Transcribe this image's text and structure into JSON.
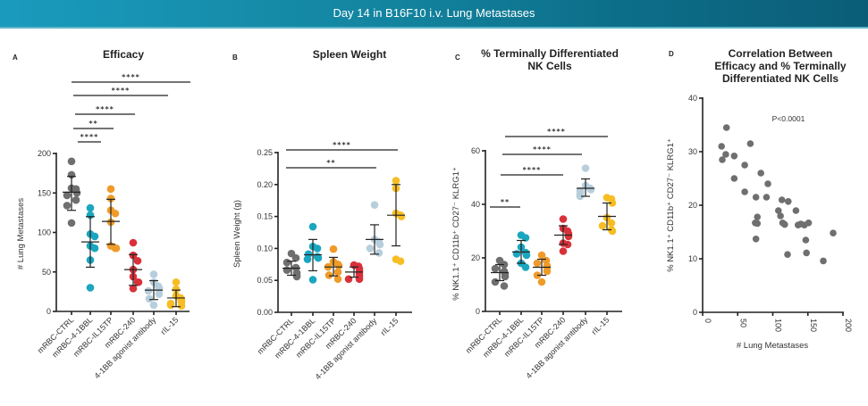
{
  "header": {
    "title": "Day 14 in B16F10 i.v. Lung Metastases"
  },
  "colors": {
    "mRBC-CTRL": "#6f6f6f",
    "mRBC-4-1BBL": "#1ba6bf",
    "mRBC-IL15TP": "#ef9b2a",
    "mRBC-240": "#d9313a",
    "4-1BB agonist antibody": "#b7cfdc",
    "rIL-15": "#f7bd24",
    "scatter": "#6f6f6f"
  },
  "chart_data": [
    {
      "id": "A",
      "type": "scatter",
      "panel_letter": "A",
      "title": "Efficacy",
      "xlabel": "",
      "ylabel": "# Lung Metastases",
      "ylim": [
        0,
        200
      ],
      "yticks": [
        0,
        50,
        100,
        150,
        200
      ],
      "categories": [
        "mRBC-CTRL",
        "mRBC-4-1BBL",
        "mRBC-IL15TP",
        "mRBC-240",
        "4-1BB agonist antibody",
        "rIL-15"
      ],
      "series": [
        {
          "name": "mRBC-CTRL",
          "values": [
            190,
            173,
            156,
            155,
            150,
            147,
            141,
            134,
            112
          ],
          "mean": 151,
          "sd_low": 128,
          "sd_high": 171
        },
        {
          "name": "mRBC-4-1BBL",
          "values": [
            131,
            122,
            98,
            95,
            83,
            80,
            65,
            30
          ],
          "mean": 88,
          "sd_low": 56,
          "sd_high": 120
        },
        {
          "name": "mRBC-IL15TP",
          "values": [
            155,
            143,
            128,
            124,
            113,
            83,
            80,
            80
          ],
          "mean": 114,
          "sd_low": 85,
          "sd_high": 142
        },
        {
          "name": "mRBC-240",
          "values": [
            87,
            71,
            64,
            53,
            44,
            37,
            37,
            29
          ],
          "mean": 53,
          "sd_low": 33,
          "sd_high": 72
        },
        {
          "name": "4-1BB agonist antibody",
          "values": [
            47,
            37,
            32,
            30,
            28,
            26,
            22,
            16,
            8
          ],
          "mean": 27,
          "sd_low": 15,
          "sd_high": 39
        },
        {
          "name": "rIL-15",
          "values": [
            37,
            28,
            20,
            17,
            14,
            12,
            10,
            8,
            7
          ],
          "mean": 17,
          "sd_low": 6,
          "sd_high": 27
        }
      ],
      "significance": [
        {
          "from": 0,
          "to": 1,
          "label": "****"
        },
        {
          "from": 0,
          "to": 2,
          "label": "**"
        },
        {
          "from": 0,
          "to": 3,
          "label": "****"
        },
        {
          "from": 0,
          "to": 4,
          "label": "****"
        },
        {
          "from": 0,
          "to": 5,
          "label": "****"
        }
      ]
    },
    {
      "id": "B",
      "type": "scatter",
      "panel_letter": "B",
      "title": "Spleen Weight",
      "xlabel": "",
      "ylabel": "Spleen Weight (g)",
      "ylim": [
        0,
        0.25
      ],
      "yticks": [
        "0.00",
        "0.05",
        "0.10",
        "0.15",
        "0.20",
        "0.25"
      ],
      "categories": [
        "mRBC-CTRL",
        "mRBC-4-1BBL",
        "mRBC-IL15TP",
        "mRBC-240",
        "4-1BB agonist antibody",
        "rIL-15"
      ],
      "series": [
        {
          "name": "mRBC-CTRL",
          "values": [
            0.092,
            0.085,
            0.078,
            0.07,
            0.066,
            0.062,
            0.058,
            0.056
          ],
          "mean": 0.069,
          "sd_low": 0.058,
          "sd_high": 0.08
        },
        {
          "name": "mRBC-4-1BBL",
          "values": [
            0.134,
            0.103,
            0.1,
            0.091,
            0.087,
            0.085,
            0.083,
            0.051
          ],
          "mean": 0.09,
          "sd_low": 0.065,
          "sd_high": 0.114
        },
        {
          "name": "mRBC-IL15TP",
          "values": [
            0.099,
            0.079,
            0.075,
            0.073,
            0.071,
            0.063,
            0.058,
            0.052
          ],
          "mean": 0.071,
          "sd_low": 0.057,
          "sd_high": 0.086
        },
        {
          "name": "mRBC-240",
          "values": [
            0.074,
            0.072,
            0.068,
            0.064,
            0.06,
            0.056,
            0.052,
            0.052
          ],
          "mean": 0.063,
          "sd_low": 0.055,
          "sd_high": 0.071
        },
        {
          "name": "4-1BB agonist antibody",
          "values": [
            0.168,
            0.114,
            0.11,
            0.106,
            0.1,
            0.093
          ],
          "mean": 0.114,
          "sd_low": 0.091,
          "sd_high": 0.137
        },
        {
          "name": "rIL-15",
          "values": [
            0.206,
            0.194,
            0.155,
            0.152,
            0.15,
            0.083,
            0.08
          ],
          "mean": 0.152,
          "sd_low": 0.104,
          "sd_high": 0.2
        }
      ],
      "significance": [
        {
          "from": 0,
          "to": 4,
          "label": "**"
        },
        {
          "from": 0,
          "to": 5,
          "label": "****"
        }
      ]
    },
    {
      "id": "C",
      "type": "scatter",
      "panel_letter": "C",
      "title": "% Terminally Differentiated NK Cells",
      "title_lines": [
        "% Terminally Differentiated",
        "NK Cells"
      ],
      "xlabel": "",
      "ylabel": "% NK1.1⁺ CD11b⁺ CD27⁻ KLRG1⁺",
      "ylim": [
        0,
        60
      ],
      "yticks": [
        0,
        20,
        40,
        60
      ],
      "categories": [
        "mRBC-CTRL",
        "mRBC-4-1BBL",
        "mRBC-IL15TP",
        "mRBC-240",
        "4-1BB agonist antibody",
        "rIL-15"
      ],
      "series": [
        {
          "name": "mRBC-CTRL",
          "values": [
            19,
            17.5,
            16,
            15,
            14,
            13,
            11,
            9.5
          ],
          "mean": 14.5,
          "sd_low": 11.5,
          "sd_high": 17.5
        },
        {
          "name": "mRBC-4-1BBL",
          "values": [
            28.5,
            27.5,
            24,
            22,
            21.5,
            21,
            18,
            16.5
          ],
          "mean": 22.2,
          "sd_low": 18,
          "sd_high": 26.5
        },
        {
          "name": "mRBC-IL15TP",
          "values": [
            21,
            19,
            18,
            17,
            16.5,
            15,
            13.5,
            11
          ],
          "mean": 16.5,
          "sd_low": 13.5,
          "sd_high": 19.5
        },
        {
          "name": "mRBC-240",
          "values": [
            34.5,
            31,
            30,
            29,
            28,
            25.5,
            25,
            22.5
          ],
          "mean": 28.5,
          "sd_low": 25,
          "sd_high": 32
        },
        {
          "name": "4-1BB agonist antibody",
          "values": [
            53.5,
            47,
            46,
            45.5,
            45,
            44,
            43.5,
            43
          ],
          "mean": 46,
          "sd_low": 43,
          "sd_high": 49.5
        },
        {
          "name": "rIL-15",
          "values": [
            42.5,
            42,
            40.5,
            35,
            33,
            32,
            30.5,
            30
          ],
          "mean": 35.5,
          "sd_low": 30.5,
          "sd_high": 40.5
        }
      ],
      "significance": [
        {
          "from": 0,
          "to": 1,
          "label": "**"
        },
        {
          "from": 0,
          "to": 3,
          "label": "****"
        },
        {
          "from": 0,
          "to": 4,
          "label": "****"
        },
        {
          "from": 0,
          "to": 5,
          "label": "****"
        }
      ]
    },
    {
      "id": "D",
      "type": "scatter",
      "panel_letter": "D",
      "title": "Correlation Between Efficacy and % Terminally Differentiated NK Cells",
      "title_lines": [
        "Correlation Between",
        "Efficacy and % Terminally",
        "Differentiated NK Cells"
      ],
      "xlabel": "# Lung Metastases",
      "ylabel": "% NK1.1⁺ CD11b⁺ CD27⁻ KLRG1⁺",
      "xlim": [
        0,
        200
      ],
      "ylim": [
        0,
        40
      ],
      "xticks": [
        0,
        50,
        100,
        150,
        200
      ],
      "yticks": [
        0,
        10,
        20,
        30,
        40
      ],
      "annotation": "P<0.0001",
      "points": [
        [
          34,
          34.5
        ],
        [
          27,
          31
        ],
        [
          68,
          31.5
        ],
        [
          28,
          28.5
        ],
        [
          33,
          29.5
        ],
        [
          45,
          29.2
        ],
        [
          60,
          27.5
        ],
        [
          45,
          25
        ],
        [
          83,
          26
        ],
        [
          93,
          24
        ],
        [
          60,
          22.5
        ],
        [
          76,
          21.5
        ],
        [
          91,
          21.5
        ],
        [
          113,
          21
        ],
        [
          122,
          20.7
        ],
        [
          108,
          19
        ],
        [
          133,
          19
        ],
        [
          111,
          18
        ],
        [
          78,
          17.8
        ],
        [
          75,
          16.7
        ],
        [
          78,
          16.6
        ],
        [
          114,
          16.7
        ],
        [
          117,
          16.4
        ],
        [
          136,
          16.3
        ],
        [
          145,
          16.3
        ],
        [
          140,
          16.5
        ],
        [
          151,
          16.7
        ],
        [
          186,
          14.8
        ],
        [
          76,
          13.7
        ],
        [
          147,
          13.5
        ],
        [
          121,
          10.8
        ],
        [
          148,
          11.1
        ],
        [
          172,
          9.6
        ]
      ]
    }
  ]
}
